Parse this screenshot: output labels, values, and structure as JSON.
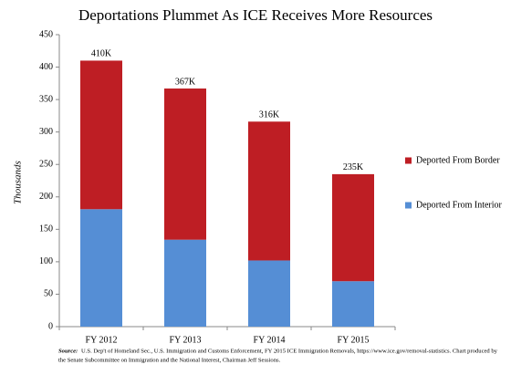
{
  "chart_data": {
    "type": "stacked_bar",
    "title": "Deportations Plummet As ICE Receives More Resources",
    "y_label": "Thousands",
    "categories": [
      "FY 2012",
      "FY 2013",
      "FY 2014",
      "FY 2015"
    ],
    "series": [
      {
        "name": "Deported From Interior",
        "color": "#558ed5",
        "values": [
          181,
          134,
          102,
          70
        ]
      },
      {
        "name": "Deported From Border",
        "color": "#be1e24",
        "values": [
          229,
          233,
          214,
          165
        ]
      }
    ],
    "totals": {
      "values": [
        410,
        367,
        316,
        235
      ],
      "value_labels": [
        "410K",
        "367K",
        "316K",
        "235K"
      ]
    },
    "ylim": [
      0,
      450
    ],
    "yticks": [
      0,
      50,
      100,
      150,
      200,
      250,
      300,
      350,
      400,
      450
    ],
    "legend": "right",
    "source_label": "Source:",
    "source_lines": [
      "U.S. Dep't of Homeland Sec., U.S. Immigration  and Customs Enforcement, FY 2015 ICE Immigration  Removals, https://www.ice.gov/removal-statistics.  Chart produced by",
      "the Senate Subcommittee on Immigration  and the National Interest, Chairman Jeff Sessions."
    ]
  }
}
